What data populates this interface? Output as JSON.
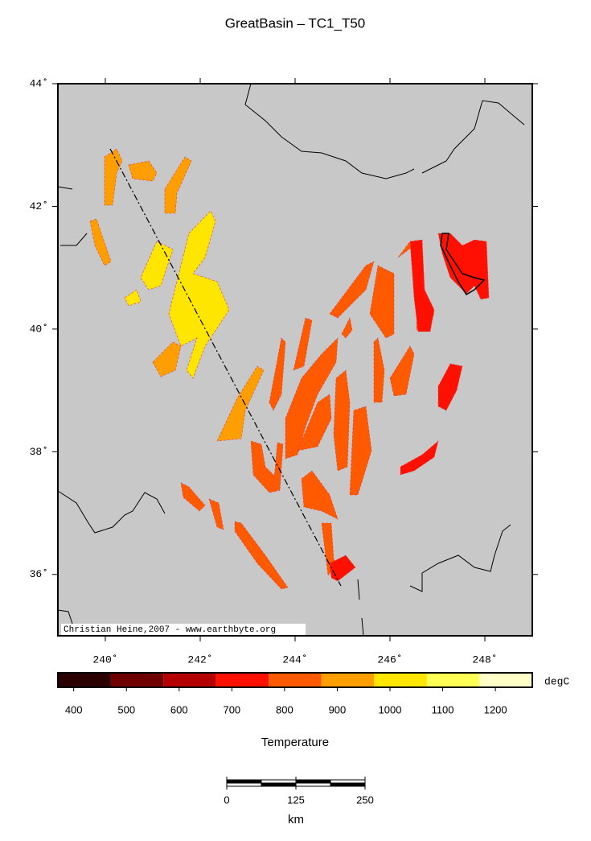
{
  "title": "GreatBasin – TC1_T50",
  "map": {
    "xlim": [
      239,
      249
    ],
    "ylim": [
      35,
      44
    ],
    "xticks": [
      {
        "value": 240,
        "label": "240˚"
      },
      {
        "value": 242,
        "label": "242˚"
      },
      {
        "value": 244,
        "label": "244˚"
      },
      {
        "value": 246,
        "label": "246˚"
      },
      {
        "value": 248,
        "label": "248˚"
      }
    ],
    "yticks": [
      {
        "value": 36,
        "label": "36˚"
      },
      {
        "value": 38,
        "label": "38˚"
      },
      {
        "value": 40,
        "label": "40˚"
      },
      {
        "value": 42,
        "label": "42˚"
      },
      {
        "value": 44,
        "label": "44˚"
      }
    ],
    "credit": "Christian Heine,2007 - www.earthbyte.org"
  },
  "colorbar": {
    "clim": [
      370,
      1270
    ],
    "ticks": [
      400,
      500,
      600,
      700,
      800,
      900,
      1000,
      1100,
      1200
    ],
    "colors": [
      "#2a0000",
      "#6e0000",
      "#b40000",
      "#ff1000",
      "#ff5a00",
      "#ff9e00",
      "#ffe600",
      "#ffff55",
      "#ffffc8"
    ],
    "unit": "degC",
    "label": "Temperature"
  },
  "scalebar": {
    "ticks": [
      0,
      125,
      250
    ],
    "unit": "km"
  }
}
